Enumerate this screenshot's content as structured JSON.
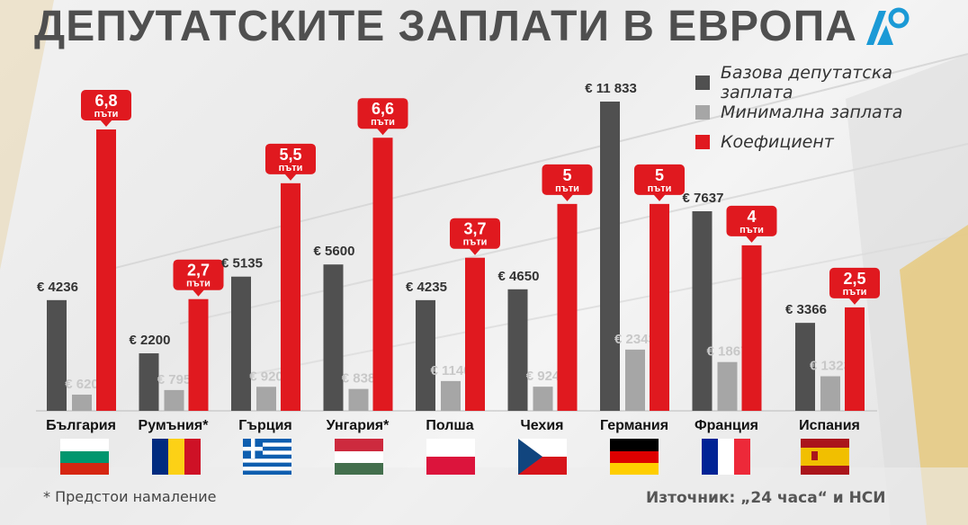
{
  "title": "ДЕПУТАТСКИТЕ ЗАПЛАТИ В ЕВРОПА",
  "legend": [
    {
      "label": "Базова депутатска заплата",
      "color": "#505050"
    },
    {
      "label": "Минимална заплата",
      "color": "#a6a6a6"
    },
    {
      "label": "Коефициент",
      "color": "#e0191f"
    }
  ],
  "footnote": "* Предстои намаление",
  "source": "Източник: „24 часа“ и НСИ",
  "chart_data": {
    "type": "bar",
    "categories": [
      "България",
      "Румъния*",
      "Гърция",
      "Унгария*",
      "Полша",
      "Чехия",
      "Германия",
      "Франция",
      "Испания"
    ],
    "series": [
      {
        "name": "Базова депутатска заплата",
        "color": "#505050",
        "values": [
          4236,
          2200,
          5135,
          5600,
          4235,
          4650,
          11833,
          7637,
          3366
        ],
        "labels": [
          "€ 4236",
          "€ 2200",
          "€ 5135",
          "€ 5600",
          "€ 4235",
          "€ 4650",
          "€ 11 833",
          "€ 7637",
          "€ 3366"
        ]
      },
      {
        "name": "Минимална заплата",
        "color": "#a6a6a6",
        "values": [
          620,
          795,
          920,
          838,
          1140,
          924,
          2343,
          1867,
          1323
        ],
        "labels": [
          "€ 620",
          "€ 795",
          "€ 920",
          "€ 838",
          "€ 1140",
          "€ 924",
          "€ 2343",
          "€ 1867",
          "€ 1323"
        ]
      },
      {
        "name": "Коефициент",
        "color": "#e0191f",
        "values": [
          6.8,
          2.7,
          5.5,
          6.6,
          3.7,
          5,
          5,
          4,
          2.5
        ],
        "labels": [
          "6,8",
          "2,7",
          "5,5",
          "6,6",
          "3,7",
          "5",
          "5",
          "4",
          "2,5"
        ],
        "unit_label": "пъти"
      }
    ]
  },
  "flags": [
    "bg",
    "ro",
    "gr",
    "hu",
    "pl",
    "cz",
    "de",
    "fr",
    "es"
  ]
}
